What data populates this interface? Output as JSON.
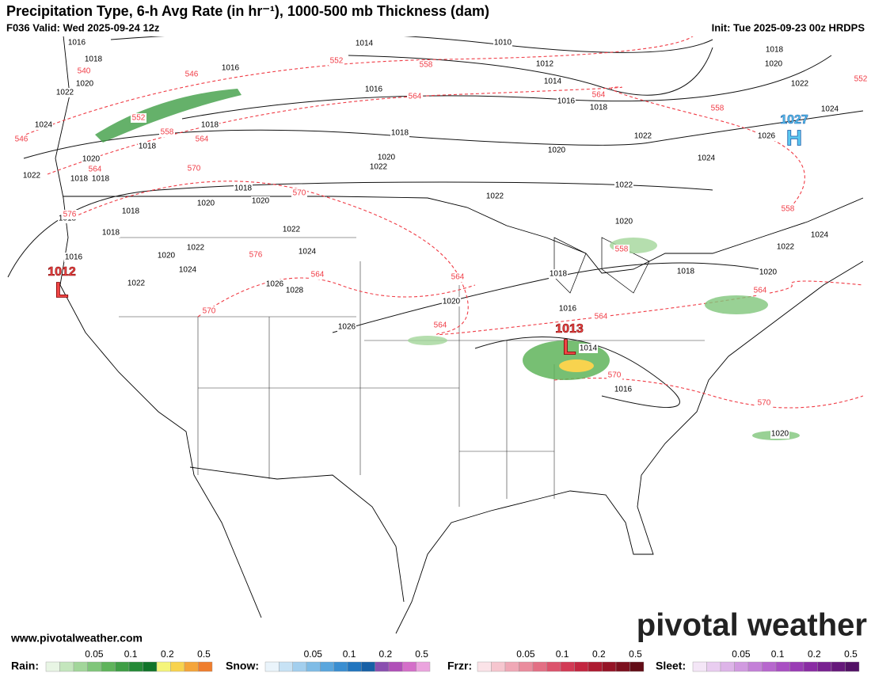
{
  "header": {
    "title": "Precipitation Type, 6-h Avg Rate (in hr⁻¹), 1000-500 mb Thickness (dam)",
    "valid": "F036 Valid: Wed 2025-09-24 12z",
    "init": "Init: Tue 2025-09-23 00z HRDPS"
  },
  "map": {
    "highs": [
      {
        "pressure": 1027,
        "symbol": "H"
      }
    ],
    "lows": [
      {
        "pressure": 1012,
        "symbol": "L"
      },
      {
        "pressure": 1013,
        "symbol": "L"
      }
    ],
    "isobar_labels": [
      1016,
      1018,
      1020,
      1022,
      1024,
      1016,
      1014,
      1010,
      1012,
      1014,
      1016,
      1018,
      1016,
      1018,
      1018,
      1020,
      1022,
      1018,
      1018,
      1018,
      1020,
      1022,
      1020,
      1022,
      1024,
      1018,
      1020,
      1022,
      1026,
      1024,
      1022,
      1022,
      1018,
      1020,
      1020,
      1018,
      1018,
      1018,
      1016,
      1022,
      1020,
      1022,
      1024,
      1024,
      1022,
      1026,
      1028,
      1026,
      1020,
      1018,
      1016,
      1014,
      1016,
      1020,
      1018,
      1020,
      1022,
      1024,
      1020
    ],
    "thickness_labels": [
      540,
      546,
      552,
      558,
      564,
      564,
      558,
      552,
      546,
      552,
      558,
      564,
      564,
      570,
      570,
      576,
      576,
      570,
      564,
      564,
      564,
      564,
      558,
      558,
      564,
      570,
      570
    ]
  },
  "footer": {
    "website": "www.pivotalweather.com",
    "brand": "pivotal weather"
  },
  "legend": [
    {
      "name": "Rain:",
      "ticks": [
        0.05,
        0.1,
        0.2,
        0.5
      ],
      "colors": [
        "#e8f5e4",
        "#c4e6bd",
        "#a2d69a",
        "#80c67a",
        "#5fb45b",
        "#3f9e45",
        "#258a37",
        "#11742a",
        "#f5f57a",
        "#f8d34e",
        "#f5a53a",
        "#ef7d2d"
      ]
    },
    {
      "name": "Snow:",
      "ticks": [
        0.05,
        0.1,
        0.2,
        0.5
      ],
      "colors": [
        "#eaf4fb",
        "#c7e2f5",
        "#a3cfee",
        "#7fbce6",
        "#5aa6dd",
        "#3a8ed1",
        "#2175bf",
        "#1760a6",
        "#8a4fb0",
        "#b050b8",
        "#d46ec9",
        "#eba4de"
      ]
    },
    {
      "name": "Frzr:",
      "ticks": [
        0.05,
        0.1,
        0.2,
        0.5
      ],
      "colors": [
        "#fbe3e8",
        "#f6c6cf",
        "#f0a8b6",
        "#ea8c9d",
        "#e36f84",
        "#dc536c",
        "#d23a55",
        "#c32640",
        "#ad1a30",
        "#951426",
        "#7c101e",
        "#620c16"
      ]
    },
    {
      "name": "Sleet:",
      "ticks": [
        0.05,
        0.1,
        0.2,
        0.5
      ],
      "colors": [
        "#f4e6f7",
        "#e9cdf0",
        "#ddb4e8",
        "#d19ae0",
        "#c480d8",
        "#b767ce",
        "#a94fc3",
        "#9a3cb5",
        "#8a2ca4",
        "#782190",
        "#66187b",
        "#531166"
      ]
    }
  ]
}
